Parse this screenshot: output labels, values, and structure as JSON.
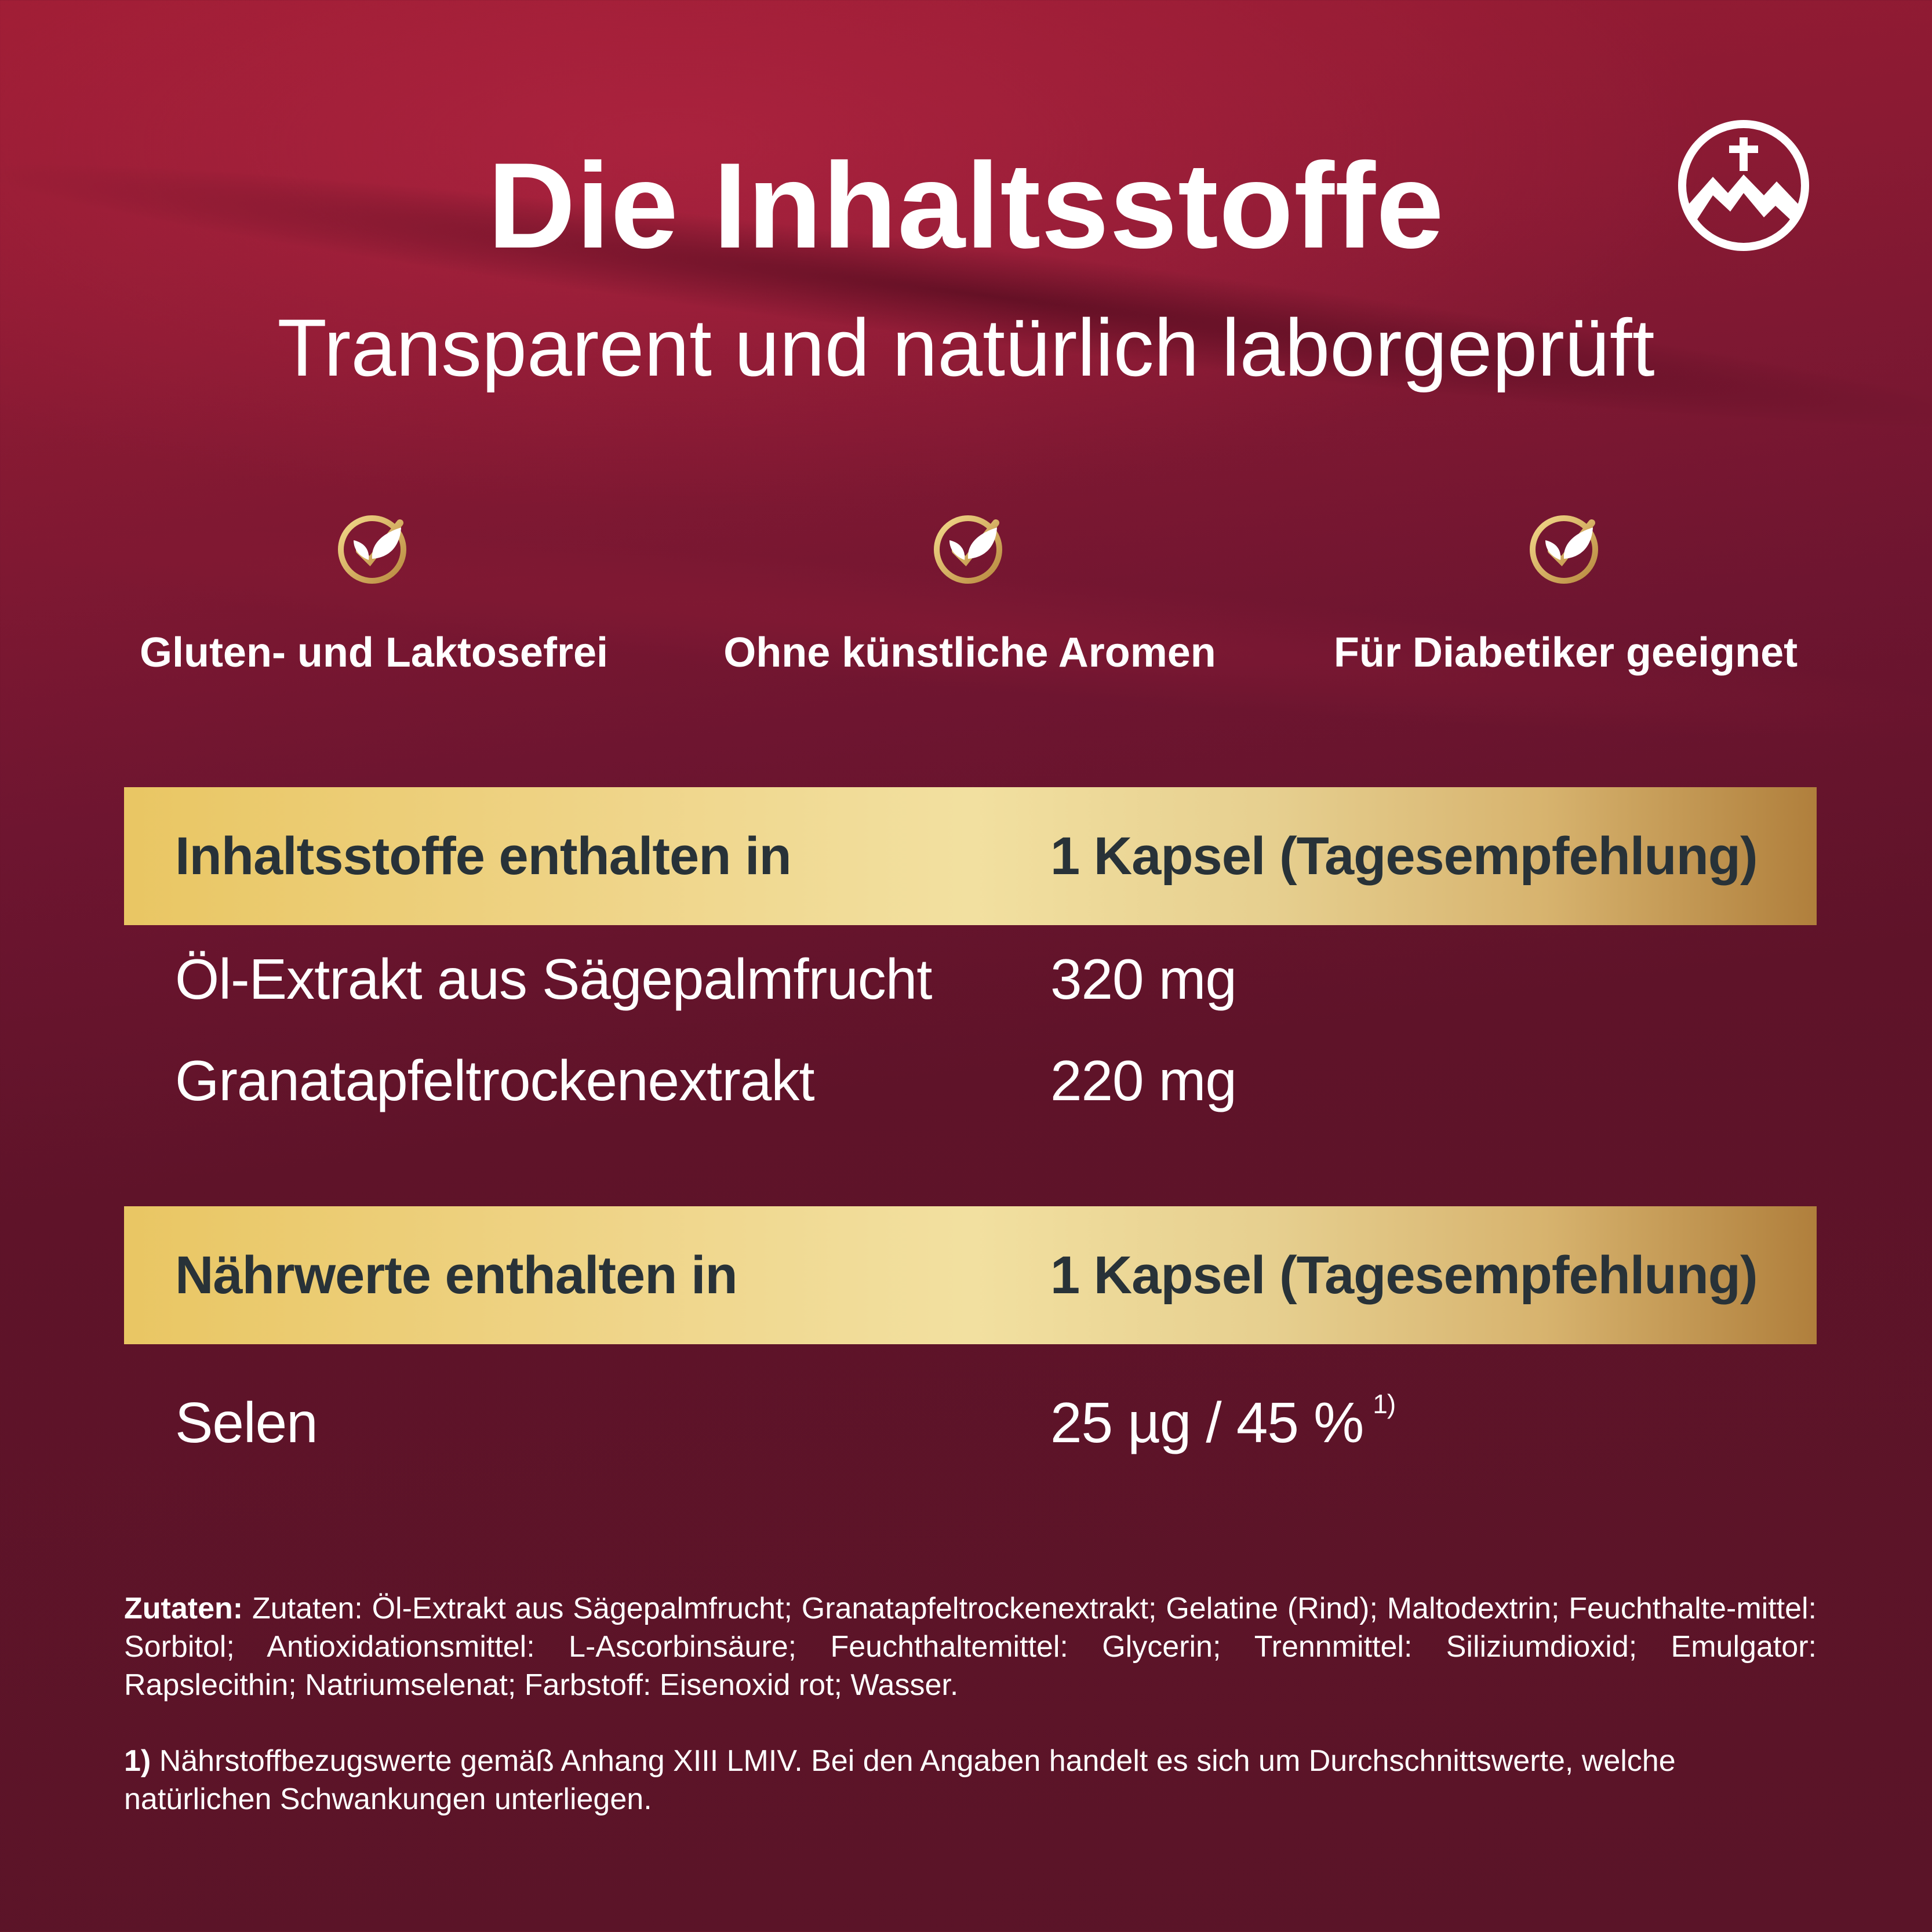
{
  "header": {
    "title": "Die Inhaltsstoffe",
    "subtitle": "Transparent und natürlich laborgeprüft"
  },
  "logo": {
    "icon": "mountain-cross-icon"
  },
  "features": [
    {
      "icon": "leaf-check-icon",
      "label": "Gluten- und Laktosefrei"
    },
    {
      "icon": "leaf-check-icon",
      "label": "Ohne künstliche Aromen"
    },
    {
      "icon": "leaf-check-icon",
      "label": "Für Diabetiker geeignet"
    }
  ],
  "ingredients_table": {
    "header_left": "Inhaltsstoffe enthalten in",
    "header_right": "1 Kapsel (Tagesempfehlung)",
    "rows": [
      {
        "name": "Öl-Extrakt aus Sägepalmfrucht",
        "value": "320 mg"
      },
      {
        "name": "Granatapfeltrockenextrakt",
        "value": "220 mg"
      }
    ]
  },
  "nutrients_table": {
    "header_left": "Nährwerte enthalten in",
    "header_right": "1 Kapsel (Tagesempfehlung)",
    "rows": [
      {
        "name": "Selen",
        "value": "25 µg / 45 %",
        "footnote_ref": "1)"
      }
    ]
  },
  "ingredients_text": {
    "label": "Zutaten:",
    "text": "Zutaten: Öl-Extrakt aus Sägepalmfrucht; Granatapfeltrockenextrakt; Gelatine (Rind); Maltodextrin; Feuchthalte-mittel: Sorbitol; Antioxidationsmittel: L-Ascorbinsäure; Feuchthaltemittel: Glycerin; Trennmittel: Siliziumdioxid; Emulgator: Rapslecithin; Natriumselenat; Farbstoff: Eisenoxid rot; Wasser."
  },
  "footnote": {
    "label": "1)",
    "text": "Nährstoffbezugswerte gemäß Anhang XIII LMIV. Bei den Angaben handelt es sich um Durchschnittswerte, welche natürlichen Schwankungen unterliegen."
  },
  "colors": {
    "background": "#7a1730",
    "gold": "#e9c663",
    "bar_text": "#283238",
    "text": "#ffffff"
  }
}
